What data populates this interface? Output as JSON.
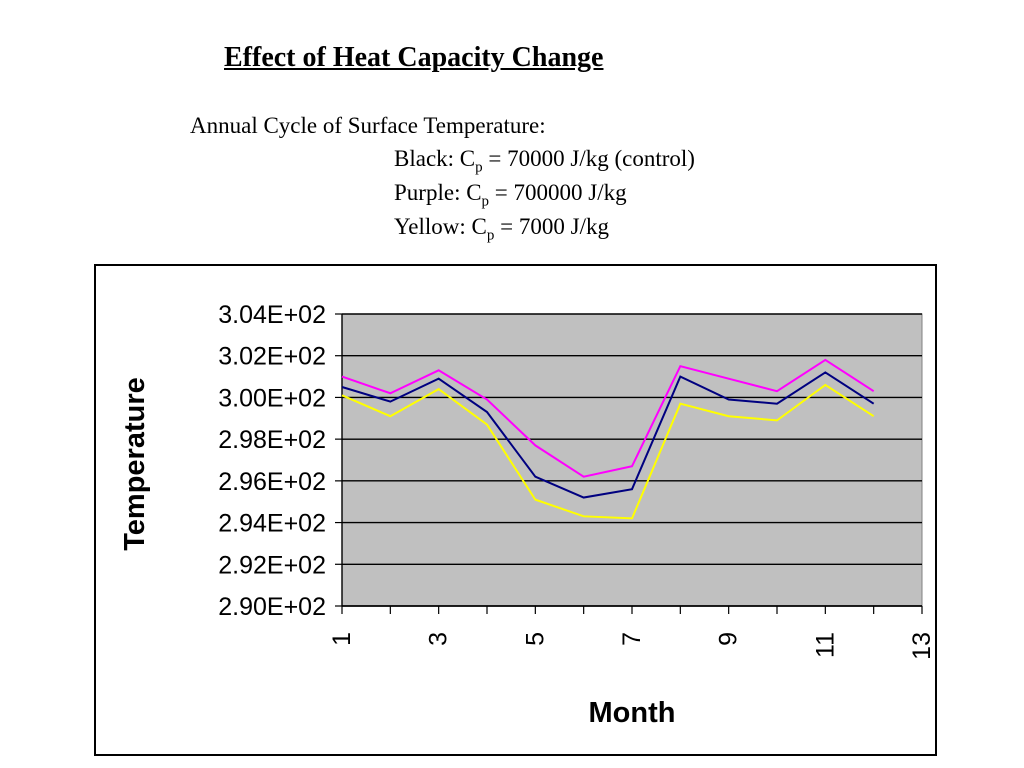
{
  "page": {
    "title": "Effect of Heat Capacity Change",
    "subtitle": "Annual Cycle of Surface Temperature:",
    "legend_lines": [
      {
        "color_name": "Black",
        "symbol": "C",
        "subscript": "p",
        "value_text": "= 70000 J/kg  (control)"
      },
      {
        "color_name": "Purple",
        "symbol": "C",
        "subscript": "p",
        "value_text": "= 700000 J/kg"
      },
      {
        "color_name": "Yellow",
        "symbol": "C",
        "subscript": "p",
        "value_text": "= 7000 J/kg"
      }
    ]
  },
  "chart_data": {
    "type": "line",
    "title": "",
    "xlabel": "Month",
    "ylabel": "Temperature",
    "xlim": [
      1,
      13
    ],
    "ylim": [
      290,
      304
    ],
    "xticks": [
      1,
      3,
      5,
      7,
      9,
      11,
      13
    ],
    "yticks": [
      290,
      292,
      294,
      296,
      298,
      300,
      302,
      304
    ],
    "ytick_labels": [
      "2.90E+02",
      "2.92E+02",
      "2.94E+02",
      "2.96E+02",
      "2.98E+02",
      "3.00E+02",
      "3.02E+02",
      "3.04E+02"
    ],
    "grid": "horizontal",
    "plot_background": "#c0c0c0",
    "x": [
      1,
      2,
      3,
      4,
      5,
      6,
      7,
      8,
      9,
      10,
      11,
      12
    ],
    "series": [
      {
        "color": "#ff00ff",
        "values": [
          301.0,
          300.2,
          301.3,
          299.9,
          297.7,
          296.2,
          296.7,
          301.5,
          300.9,
          300.3,
          301.8,
          300.3
        ]
      },
      {
        "color": "#000080",
        "values": [
          300.5,
          299.8,
          300.9,
          299.3,
          296.2,
          295.2,
          295.6,
          301.0,
          299.9,
          299.7,
          301.2,
          299.7
        ]
      },
      {
        "color": "#ffff00",
        "values": [
          300.1,
          299.1,
          300.4,
          298.7,
          295.1,
          294.3,
          294.2,
          299.7,
          299.1,
          298.9,
          300.6,
          299.1
        ]
      }
    ]
  }
}
